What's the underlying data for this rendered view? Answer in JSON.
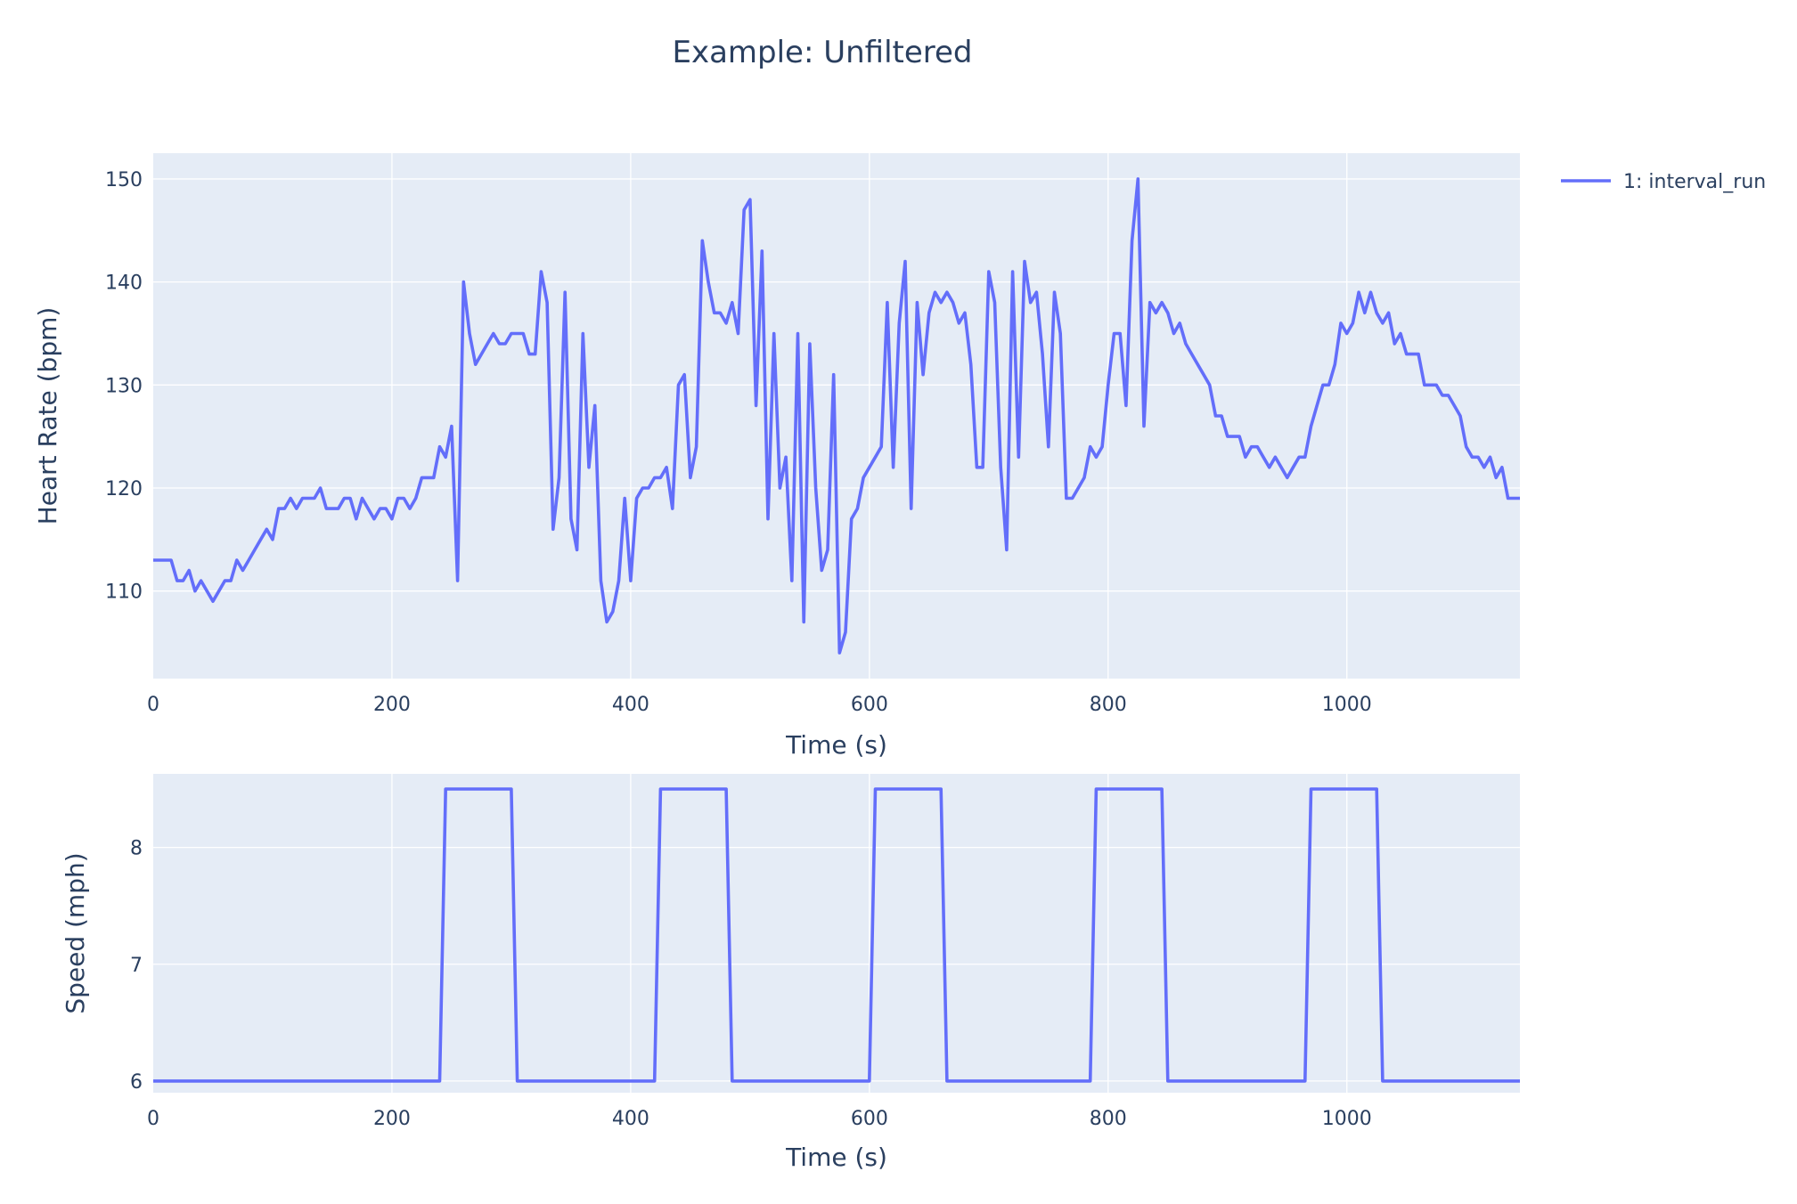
{
  "title": "Example: Unfiltered",
  "legend": {
    "label": "1: interval_run",
    "placement": "top-right",
    "color": "#636efa"
  },
  "chart_data": [
    {
      "type": "line",
      "xlabel": "Time (s)",
      "ylabel": "Heart Rate (bpm)",
      "xlim": [
        0,
        1145
      ],
      "ylim": [
        101.5,
        152.5
      ],
      "xticks": [
        0,
        200,
        400,
        600,
        800,
        1000
      ],
      "yticks": [
        110,
        120,
        130,
        140,
        150
      ],
      "grid": true,
      "series": [
        {
          "name": "1: interval_run",
          "color": "#636efa",
          "x": [
            0,
            5,
            10,
            15,
            20,
            25,
            30,
            35,
            40,
            45,
            50,
            55,
            60,
            65,
            70,
            75,
            80,
            85,
            90,
            95,
            100,
            105,
            110,
            115,
            120,
            125,
            130,
            135,
            140,
            145,
            150,
            155,
            160,
            165,
            170,
            175,
            180,
            185,
            190,
            195,
            200,
            205,
            210,
            215,
            220,
            225,
            230,
            235,
            240,
            245,
            250,
            255,
            260,
            265,
            270,
            275,
            280,
            285,
            290,
            295,
            300,
            305,
            310,
            315,
            320,
            325,
            330,
            335,
            340,
            345,
            350,
            355,
            360,
            365,
            370,
            375,
            380,
            385,
            390,
            395,
            400,
            405,
            410,
            415,
            420,
            425,
            430,
            435,
            440,
            445,
            450,
            455,
            460,
            465,
            470,
            475,
            480,
            485,
            490,
            495,
            500,
            505,
            510,
            515,
            520,
            525,
            530,
            535,
            540,
            545,
            550,
            555,
            560,
            565,
            570,
            575,
            580,
            585,
            590,
            595,
            600,
            605,
            610,
            615,
            620,
            625,
            630,
            635,
            640,
            645,
            650,
            655,
            660,
            665,
            670,
            675,
            680,
            685,
            690,
            695,
            700,
            705,
            710,
            715,
            720,
            725,
            730,
            735,
            740,
            745,
            750,
            755,
            760,
            765,
            770,
            775,
            780,
            785,
            790,
            795,
            800,
            805,
            810,
            815,
            820,
            825,
            830,
            835,
            840,
            845,
            850,
            855,
            860,
            865,
            870,
            875,
            880,
            885,
            890,
            895,
            900,
            905,
            910,
            915,
            920,
            925,
            930,
            935,
            940,
            945,
            950,
            955,
            960,
            965,
            970,
            975,
            980,
            985,
            990,
            995,
            1000,
            1005,
            1010,
            1015,
            1020,
            1025,
            1030,
            1035,
            1040,
            1045,
            1050,
            1055,
            1060,
            1065,
            1070,
            1075,
            1080,
            1085,
            1090,
            1095,
            1100,
            1105,
            1110,
            1115,
            1120,
            1125,
            1130,
            1135,
            1140,
            1145
          ],
          "y": [
            113,
            113,
            113,
            113,
            111,
            111,
            112,
            110,
            111,
            110,
            109,
            110,
            111,
            111,
            113,
            112,
            113,
            114,
            115,
            116,
            115,
            118,
            118,
            119,
            118,
            119,
            119,
            119,
            120,
            118,
            118,
            118,
            119,
            119,
            117,
            119,
            118,
            117,
            118,
            118,
            117,
            119,
            119,
            118,
            119,
            121,
            121,
            121,
            124,
            123,
            126,
            111,
            140,
            135,
            132,
            133,
            134,
            135,
            134,
            134,
            135,
            135,
            135,
            133,
            133,
            141,
            138,
            116,
            121,
            139,
            117,
            114,
            135,
            122,
            128,
            111,
            107,
            108,
            111,
            119,
            111,
            119,
            120,
            120,
            121,
            121,
            122,
            118,
            130,
            131,
            121,
            124,
            144,
            140,
            137,
            137,
            136,
            138,
            135,
            147,
            148,
            128,
            143,
            117,
            135,
            120,
            123,
            111,
            135,
            107,
            134,
            120,
            112,
            114,
            131,
            104,
            106,
            117,
            118,
            121,
            122,
            123,
            124,
            138,
            122,
            136,
            142,
            118,
            138,
            131,
            137,
            139,
            138,
            139,
            138,
            136,
            137,
            132,
            122,
            122,
            141,
            138,
            122,
            114,
            141,
            123,
            142,
            138,
            139,
            133,
            124,
            139,
            135,
            119,
            119,
            120,
            121,
            124,
            123,
            124,
            130,
            135,
            135,
            128,
            144,
            150,
            126,
            138,
            137,
            138,
            137,
            135,
            136,
            134,
            133,
            132,
            131,
            130,
            127,
            127,
            125,
            125,
            125,
            123,
            124,
            124,
            123,
            122,
            123,
            122,
            121,
            122,
            123,
            123,
            126,
            128,
            130,
            130,
            132,
            136,
            135,
            136,
            139,
            137,
            139,
            137,
            136,
            137,
            134,
            135,
            133,
            133,
            133,
            130,
            130,
            130,
            129,
            129,
            128,
            127,
            124,
            123,
            123,
            122,
            123,
            121,
            122,
            119,
            119,
            119
          ]
        }
      ]
    },
    {
      "type": "line",
      "xlabel": "Time (s)",
      "ylabel": "Speed (mph)",
      "xlim": [
        0,
        1145
      ],
      "ylim": [
        5.9,
        8.63
      ],
      "xticks": [
        0,
        200,
        400,
        600,
        800,
        1000
      ],
      "yticks": [
        6,
        7,
        8
      ],
      "grid": true,
      "series": [
        {
          "name": "1: interval_run",
          "color": "#636efa",
          "x": [
            0,
            240,
            245,
            300,
            305,
            420,
            425,
            480,
            485,
            600,
            605,
            660,
            665,
            785,
            790,
            845,
            850,
            965,
            970,
            1025,
            1030,
            1145
          ],
          "y": [
            6,
            6,
            8.5,
            8.5,
            6,
            6,
            8.5,
            8.5,
            6,
            6,
            8.5,
            8.5,
            6,
            6,
            8.5,
            8.5,
            6,
            6,
            8.5,
            8.5,
            6,
            6
          ]
        }
      ]
    }
  ]
}
